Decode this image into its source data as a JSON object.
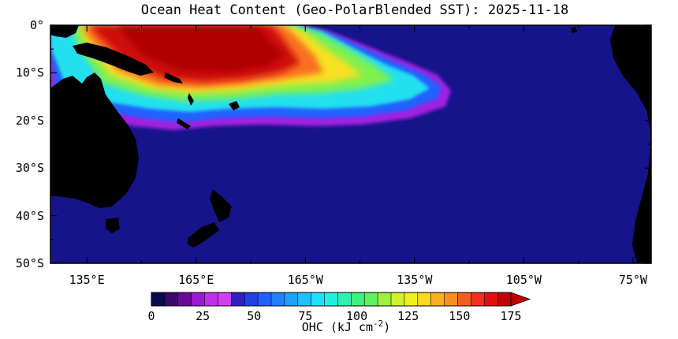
{
  "title": "Ocean Heat Content (Geo-PolarBlended SST): 2025-11-18",
  "lat_labels": [
    "0°",
    "10°S",
    "20°S",
    "30°S",
    "40°S",
    "50°S"
  ],
  "lat_values": [
    0,
    -10,
    -20,
    -30,
    -40,
    -50
  ],
  "lon_labels": [
    "135°E",
    "165°E",
    "165°W",
    "135°W",
    "105°W",
    "75°W"
  ],
  "lon_values": [
    135,
    165,
    195,
    225,
    255,
    285
  ],
  "colorbar": {
    "ticks": [
      "0",
      "25",
      "50",
      "75",
      "100",
      "125",
      "150",
      "175"
    ],
    "tick_values": [
      0,
      25,
      50,
      75,
      100,
      125,
      150,
      175
    ],
    "unit_main": "OHC (kJ cm",
    "unit_exp": "-2",
    "unit_close": ")",
    "min": 0,
    "max": 175,
    "colors": [
      "#0a0a50",
      "#3a0a6a",
      "#6a0a9a",
      "#9a1ad0",
      "#c030e8",
      "#d040f0",
      "#3020c0",
      "#2040e0",
      "#2060ff",
      "#2080ff",
      "#20a0ff",
      "#20c0ff",
      "#20e0ff",
      "#20f0e0",
      "#30f0b0",
      "#40f080",
      "#60f060",
      "#a0f040",
      "#d0f030",
      "#f0f020",
      "#f8d820",
      "#f8b020",
      "#f89020",
      "#f06020",
      "#f03020",
      "#e01010",
      "#c00000"
    ]
  },
  "colors": {
    "ocean_zero": "#16148a",
    "land": "#000000"
  }
}
